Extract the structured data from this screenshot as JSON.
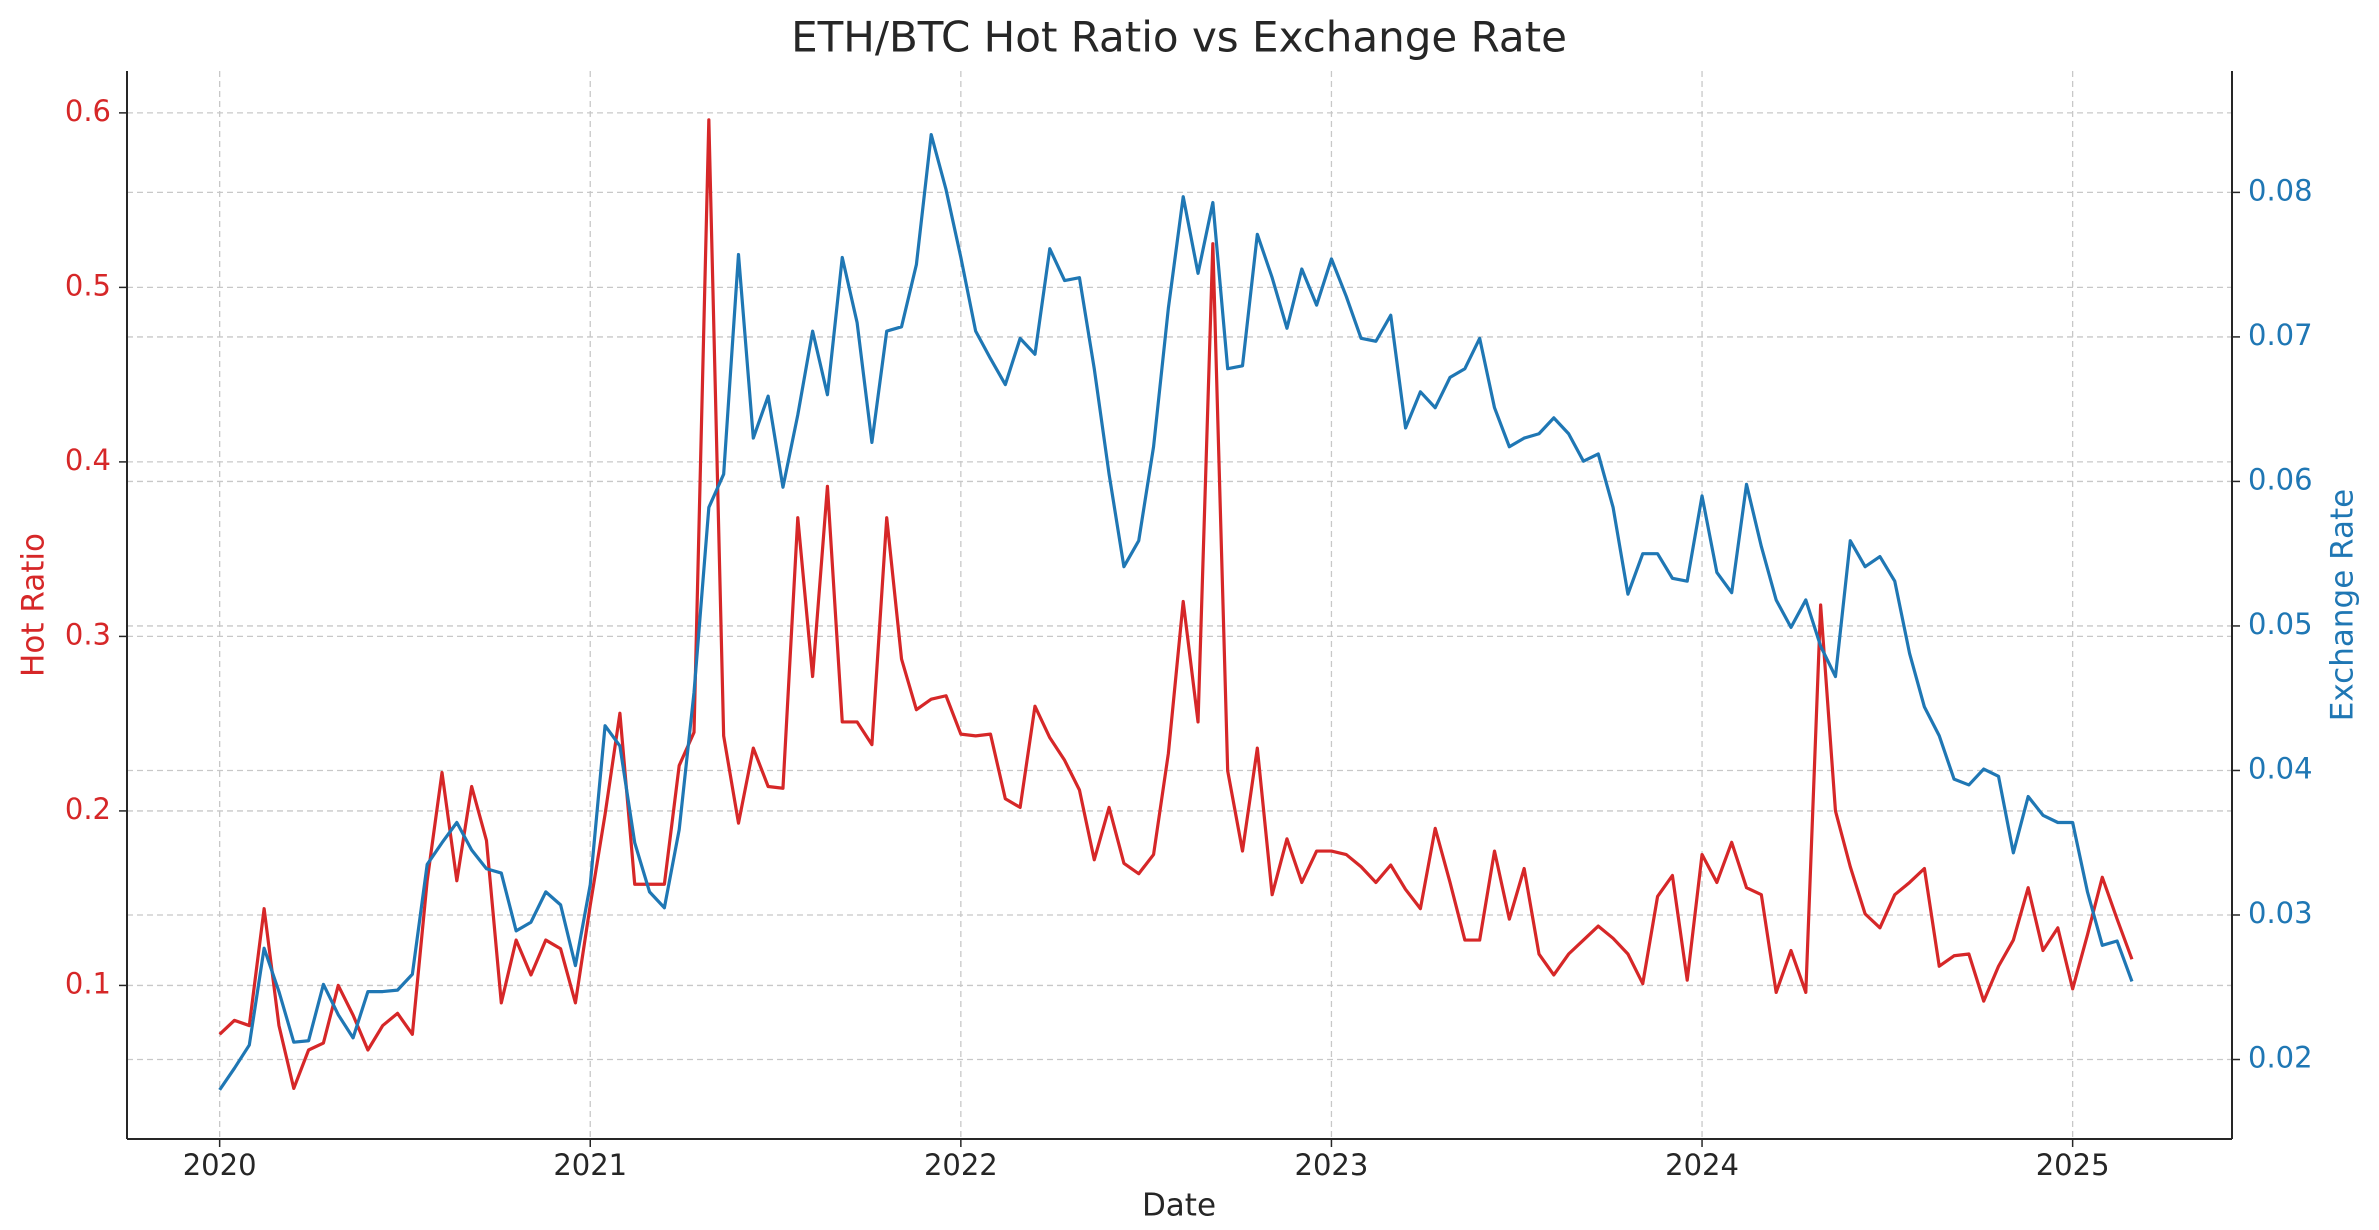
{
  "chart_data": {
    "type": "line",
    "title": "ETH/BTC Hot Ratio vs Exchange Rate",
    "xlabel": "Date",
    "ylabel": "Hot Ratio",
    "y2label": "Exchange Rate",
    "x": [
      2020.0,
      2020.04,
      2020.08,
      2020.12,
      2020.16,
      2020.2,
      2020.24,
      2020.28,
      2020.32,
      2020.36,
      2020.4,
      2020.44,
      2020.48,
      2020.52,
      2020.56,
      2020.6,
      2020.64,
      2020.68,
      2020.72,
      2020.76,
      2020.8,
      2020.84,
      2020.88,
      2020.92,
      2020.96,
      2021.0,
      2021.04,
      2021.08,
      2021.12,
      2021.16,
      2021.2,
      2021.24,
      2021.28,
      2021.32,
      2021.36,
      2021.4,
      2021.44,
      2021.48,
      2021.52,
      2021.56,
      2021.6,
      2021.64,
      2021.68,
      2021.72,
      2021.76,
      2021.8,
      2021.84,
      2021.88,
      2021.92,
      2021.96,
      2022.0,
      2022.04,
      2022.08,
      2022.12,
      2022.16,
      2022.2,
      2022.24,
      2022.28,
      2022.32,
      2022.36,
      2022.4,
      2022.44,
      2022.48,
      2022.52,
      2022.56,
      2022.6,
      2022.64,
      2022.68,
      2022.72,
      2022.76,
      2022.8,
      2022.84,
      2022.88,
      2022.92,
      2022.96,
      2023.0,
      2023.04,
      2023.08,
      2023.12,
      2023.16,
      2023.2,
      2023.24,
      2023.28,
      2023.32,
      2023.36,
      2023.4,
      2023.44,
      2023.48,
      2023.52,
      2023.56,
      2023.6,
      2023.64,
      2023.68,
      2023.72,
      2023.76,
      2023.8,
      2023.84,
      2023.88,
      2023.92,
      2023.96,
      2024.0,
      2024.04,
      2024.08,
      2024.12,
      2024.16,
      2024.2,
      2024.24,
      2024.28,
      2024.32,
      2024.36,
      2024.4,
      2024.44,
      2024.48,
      2024.52,
      2024.56,
      2024.6,
      2024.64,
      2024.68,
      2024.72,
      2024.76,
      2024.8,
      2024.84,
      2024.88,
      2024.92,
      2024.96,
      2025.0,
      2025.04,
      2025.08,
      2025.12,
      2025.16
    ],
    "series": [
      {
        "color": "#d62728",
        "axis": "y",
        "values": [
          0.072,
          0.08,
          0.077,
          0.144,
          0.077,
          0.041,
          0.063,
          0.067,
          0.1,
          0.083,
          0.063,
          0.077,
          0.084,
          0.072,
          0.16,
          0.222,
          0.16,
          0.214,
          0.183,
          0.09,
          0.126,
          0.106,
          0.126,
          0.121,
          0.09,
          0.146,
          0.198,
          0.256,
          0.158,
          0.158,
          0.158,
          0.226,
          0.245,
          0.596,
          0.243,
          0.193,
          0.236,
          0.214,
          0.213,
          0.368,
          0.277,
          0.386,
          0.251,
          0.251,
          0.238,
          0.368,
          0.287,
          0.258,
          0.264,
          0.266,
          0.244,
          0.243,
          0.244,
          0.207,
          0.202,
          0.26,
          0.242,
          0.229,
          0.212,
          0.172,
          0.202,
          0.17,
          0.164,
          0.175,
          0.233,
          0.32,
          0.251,
          0.525,
          0.223,
          0.177,
          0.236,
          0.152,
          0.184,
          0.159,
          0.177,
          0.177,
          0.175,
          0.168,
          0.159,
          0.169,
          0.155,
          0.144,
          0.19,
          0.159,
          0.126,
          0.126,
          0.177,
          0.138,
          0.167,
          0.118,
          0.106,
          0.118,
          0.126,
          0.134,
          0.127,
          0.118,
          0.101,
          0.151,
          0.163,
          0.103,
          0.175,
          0.159,
          0.182,
          0.156,
          0.152,
          0.096,
          0.12,
          0.096,
          0.318,
          0.2,
          0.168,
          0.141,
          0.133,
          0.152,
          0.159,
          0.167,
          0.111,
          0.117,
          0.118,
          0.091,
          0.111,
          0.126,
          0.156,
          0.12,
          0.133,
          0.098,
          0.129,
          0.162,
          0.138,
          0.115
        ]
      },
      {
        "color": "#1f77b4",
        "axis": "y2",
        "values": [
          0.0179,
          0.0194,
          0.021,
          0.0277,
          0.0247,
          0.0212,
          0.0213,
          0.0252,
          0.0231,
          0.0215,
          0.0247,
          0.0247,
          0.0248,
          0.0259,
          0.0335,
          0.035,
          0.0364,
          0.0345,
          0.0332,
          0.0329,
          0.0289,
          0.0295,
          0.0316,
          0.0307,
          0.0265,
          0.0321,
          0.0431,
          0.0417,
          0.035,
          0.0316,
          0.0305,
          0.0359,
          0.0454,
          0.0582,
          0.0605,
          0.0757,
          0.063,
          0.0659,
          0.0596,
          0.0646,
          0.0704,
          0.066,
          0.0755,
          0.071,
          0.0627,
          0.0704,
          0.0707,
          0.075,
          0.084,
          0.0802,
          0.0755,
          0.0704,
          0.0685,
          0.0667,
          0.0699,
          0.0688,
          0.0761,
          0.0739,
          0.0741,
          0.0678,
          0.0605,
          0.0541,
          0.0559,
          0.0624,
          0.072,
          0.0797,
          0.0744,
          0.0793,
          0.0678,
          0.068,
          0.0771,
          0.0741,
          0.0706,
          0.0747,
          0.0722,
          0.0754,
          0.0728,
          0.0699,
          0.0697,
          0.0715,
          0.0637,
          0.0662,
          0.0651,
          0.0672,
          0.0678,
          0.0699,
          0.0651,
          0.0624,
          0.063,
          0.0633,
          0.0644,
          0.0633,
          0.0614,
          0.0619,
          0.0582,
          0.0522,
          0.055,
          0.055,
          0.0533,
          0.0531,
          0.059,
          0.0537,
          0.0523,
          0.0598,
          0.0555,
          0.0518,
          0.0499,
          0.0518,
          0.0486,
          0.0465,
          0.0559,
          0.0541,
          0.0548,
          0.0531,
          0.0481,
          0.0444,
          0.0424,
          0.0394,
          0.039,
          0.0401,
          0.0396,
          0.0343,
          0.0382,
          0.0369,
          0.0364,
          0.0364,
          0.0316,
          0.0279,
          0.0282,
          0.0254
        ]
      }
    ],
    "xlim": [
      2019.75,
      2025.43
    ],
    "xticks": [
      2020,
      2021,
      2022,
      2023,
      2024,
      2025
    ],
    "ylim": [
      0.012,
      0.624
    ],
    "yticks": [
      0.1,
      0.2,
      0.3,
      0.4,
      0.5,
      0.6
    ],
    "y2lim": [
      0.0145,
      0.0884
    ],
    "y2ticks": [
      0.02,
      0.03,
      0.04,
      0.05,
      0.06,
      0.07,
      0.08
    ],
    "grid": true
  }
}
